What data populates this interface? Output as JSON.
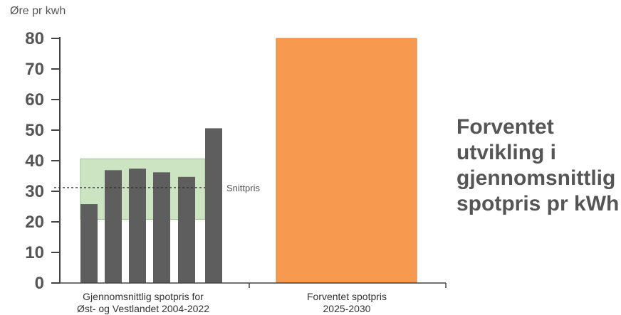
{
  "chart_data": {
    "type": "bar",
    "ylabel": "Øre pr kwh",
    "ylim": [
      0,
      80
    ],
    "yticks": [
      0,
      10,
      20,
      30,
      40,
      50,
      60,
      70,
      80
    ],
    "title_lines": [
      "Forventet",
      "utvikling i",
      "gjennomsnittlig",
      "spotpris pr kWh"
    ],
    "groups": [
      {
        "label_lines": [
          "Gjennomsnittlig spotpris for",
          "Øst- og Vestlandet 2004-2022"
        ],
        "values": [
          25.8,
          36.9,
          37.4,
          36.2,
          34.7,
          50.6
        ],
        "color": "#5e5e5e"
      },
      {
        "label_lines": [
          "Forventet spotpris",
          "2025-2030"
        ],
        "values": [
          80
        ],
        "color": "#f7994f"
      }
    ],
    "range_band": {
      "min": 20.8,
      "max": 40.6,
      "color": "#cde4c2"
    },
    "average_line": {
      "value": 31.2,
      "label": "Snittpris"
    }
  }
}
